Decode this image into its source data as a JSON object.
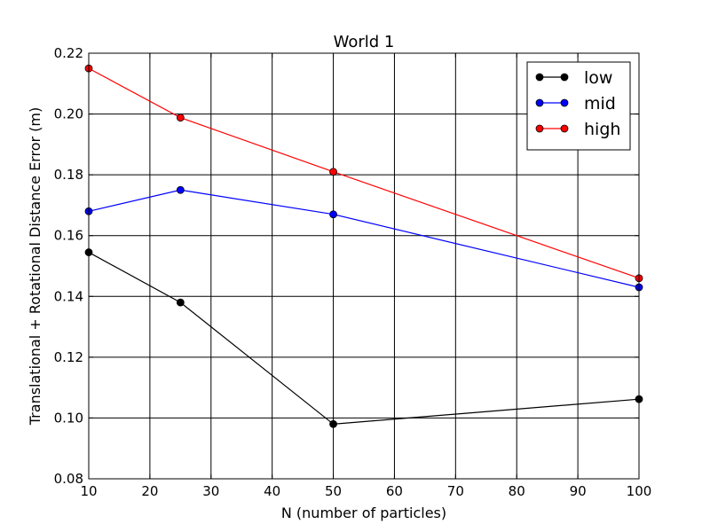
{
  "chart_data": {
    "type": "line",
    "title": "World 1",
    "xlabel": "N (number of particles)",
    "ylabel": "Translational + Rotational Distance Error (m)",
    "x": [
      10,
      25,
      50,
      100
    ],
    "xlim": [
      10,
      100
    ],
    "ylim": [
      0.08,
      0.22
    ],
    "xticks": [
      10,
      20,
      30,
      40,
      50,
      60,
      70,
      80,
      90,
      100
    ],
    "yticks": [
      0.08,
      0.1,
      0.12,
      0.14,
      0.16,
      0.18,
      0.2,
      0.22
    ],
    "xtick_labels": [
      "10",
      "20",
      "30",
      "40",
      "50",
      "60",
      "70",
      "80",
      "90",
      "100"
    ],
    "ytick_labels": [
      "0.08",
      "0.10",
      "0.12",
      "0.14",
      "0.16",
      "0.18",
      "0.20",
      "0.22"
    ],
    "grid": true,
    "legend_position": "top-right",
    "series": [
      {
        "name": "low",
        "color": "#000000",
        "values": [
          0.1545,
          0.138,
          0.098,
          0.1062
        ]
      },
      {
        "name": "mid",
        "color": "#0000ff",
        "values": [
          0.168,
          0.175,
          0.167,
          0.143
        ]
      },
      {
        "name": "high",
        "color": "#ff0000",
        "values": [
          0.215,
          0.1988,
          0.181,
          0.146
        ]
      }
    ]
  }
}
